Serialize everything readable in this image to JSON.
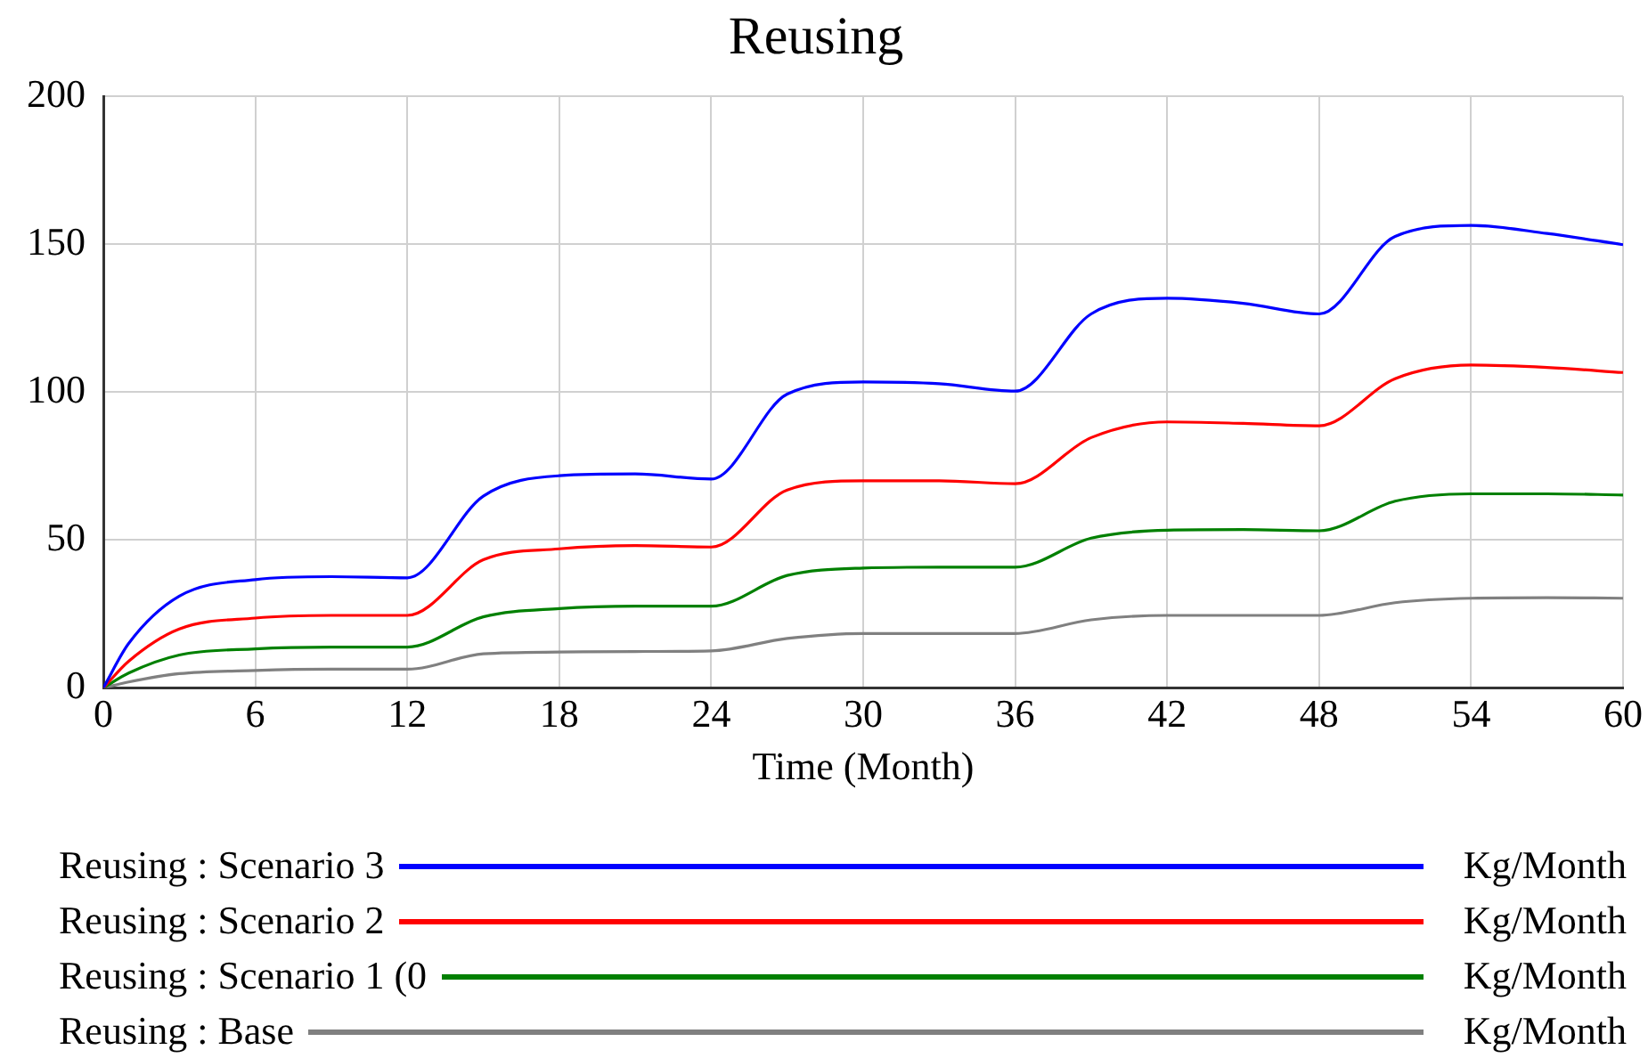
{
  "chart_data": {
    "type": "line",
    "title": "Reusing",
    "xlabel": "Time (Month)",
    "x": [
      0,
      1,
      3,
      6,
      9,
      12,
      15,
      18,
      21,
      24,
      27,
      30,
      33,
      36,
      39,
      42,
      45,
      48,
      51,
      54,
      57,
      60
    ],
    "series": [
      {
        "name": "Reusing : Scenario 3",
        "color": "#0000ff",
        "values": [
          0,
          15,
          31,
          36.6,
          37.6,
          37.2,
          64.8,
          71.7,
          72.3,
          70.6,
          99.3,
          103.4,
          102.8,
          100.3,
          126.4,
          131.7,
          130,
          126.4,
          152.6,
          156.3,
          153.6,
          149.8
        ]
      },
      {
        "name": "Reusing : Scenario 2",
        "color": "#ff0000",
        "values": [
          0,
          9,
          19.9,
          23.6,
          24.5,
          24.5,
          43.3,
          47,
          48.1,
          47.6,
          66.9,
          70,
          70,
          69,
          84.6,
          89.9,
          89.4,
          88.6,
          104.5,
          109.1,
          108.3,
          106.6
        ]
      },
      {
        "name": "Reusing : Scenario 1 (0",
        "color": "#008000",
        "values": [
          0,
          5,
          11.1,
          13.2,
          13.8,
          13.8,
          24,
          26.8,
          27.6,
          27.6,
          38,
          40.5,
          40.8,
          40.8,
          50.6,
          53.3,
          53.5,
          53.1,
          63.1,
          65.6,
          65.6,
          65.2
        ]
      },
      {
        "name": "Reusing : Base",
        "color": "#808080",
        "values": [
          0,
          2,
          4.8,
          5.9,
          6.3,
          6.3,
          11.5,
          12.1,
          12.3,
          12.5,
          16.7,
          18.4,
          18.4,
          18.4,
          23,
          24.5,
          24.5,
          24.5,
          28.8,
          30.3,
          30.5,
          30.3
        ]
      }
    ],
    "annotations": [
      "Kg/Month",
      "Kg/Month",
      "Kg/Month",
      "Kg/Month"
    ],
    "xlim": [
      0,
      60
    ],
    "xticks": [
      0,
      6,
      12,
      18,
      24,
      30,
      36,
      42,
      48,
      54,
      60
    ],
    "ylim": [
      0,
      200
    ],
    "yticks": [
      0,
      50,
      100,
      150,
      200
    ],
    "grid": true,
    "legend": "bottom",
    "marker": "none",
    "line_style": "solid"
  }
}
